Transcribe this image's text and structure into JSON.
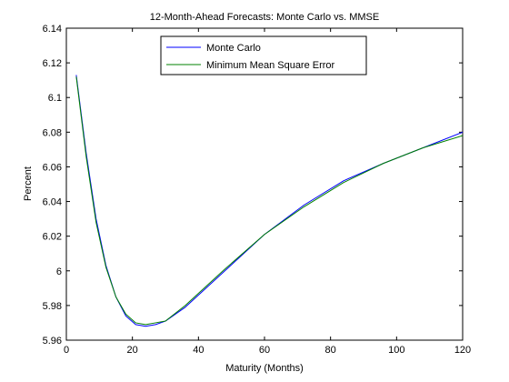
{
  "chart_data": {
    "type": "line",
    "title": "12-Month-Ahead Forecasts: Monte Carlo vs. MMSE",
    "xlabel": "Maturity (Months)",
    "ylabel": "Percent",
    "xlim": [
      0,
      120
    ],
    "ylim": [
      5.96,
      6.14
    ],
    "xticks": [
      0,
      20,
      40,
      60,
      80,
      100,
      120
    ],
    "yticks": [
      5.96,
      5.98,
      6,
      6.02,
      6.04,
      6.06,
      6.08,
      6.1,
      6.12,
      6.14
    ],
    "ytick_labels": [
      "5.96",
      "5.98",
      "6",
      "6.02",
      "6.04",
      "6.06",
      "6.08",
      "6.1",
      "6.12",
      "6.14"
    ],
    "grid": false,
    "legend_position": "top-center",
    "series": [
      {
        "name": "Monte Carlo",
        "color": "#0000ff",
        "x": [
          3,
          6,
          9,
          12,
          15,
          18,
          21,
          24,
          27,
          30,
          36,
          48,
          60,
          72,
          84,
          96,
          108,
          120
        ],
        "y": [
          6.113,
          6.068,
          6.03,
          6.003,
          5.985,
          5.974,
          5.969,
          5.968,
          5.969,
          5.971,
          5.979,
          6.0,
          6.021,
          6.038,
          6.052,
          6.062,
          6.071,
          6.08
        ]
      },
      {
        "name": "Minimum Mean Square Error",
        "color": "#008000",
        "x": [
          3,
          6,
          9,
          12,
          15,
          18,
          21,
          24,
          27,
          30,
          36,
          48,
          60,
          72,
          84,
          96,
          108,
          120
        ],
        "y": [
          6.112,
          6.066,
          6.028,
          6.002,
          5.985,
          5.975,
          5.97,
          5.969,
          5.97,
          5.971,
          5.98,
          6.001,
          6.021,
          6.037,
          6.051,
          6.062,
          6.071,
          6.078
        ]
      }
    ]
  }
}
